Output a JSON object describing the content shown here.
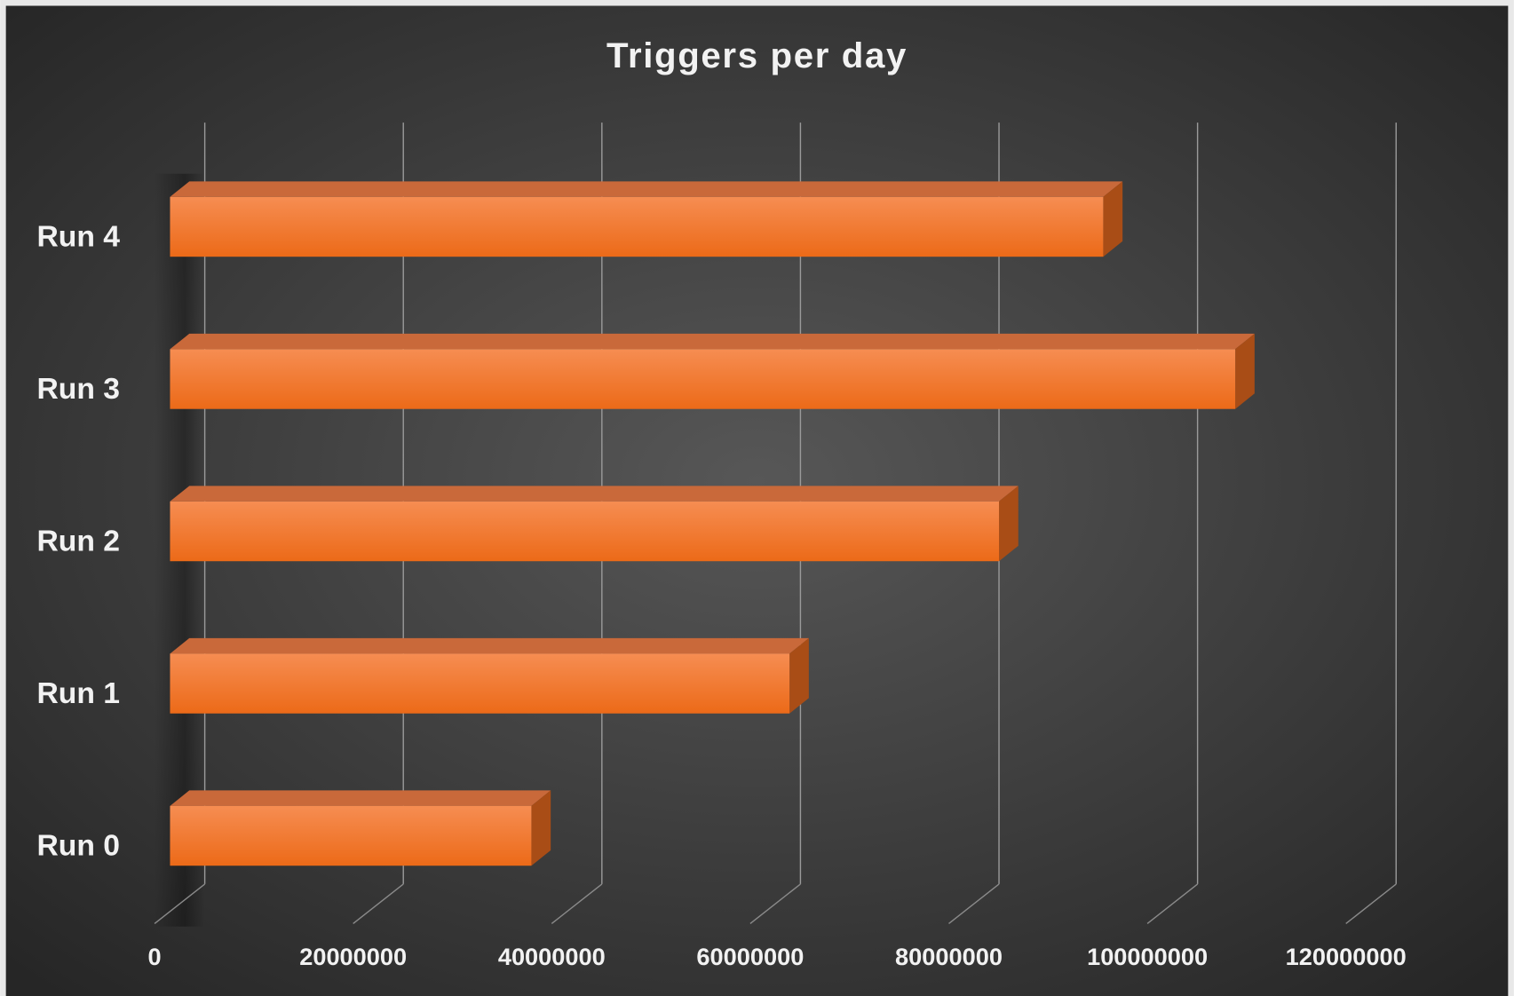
{
  "chart_data": {
    "type": "bar3d",
    "title": "Triggers per day",
    "categories": [
      "Run 0",
      "Run 1",
      "Run 2",
      "Run 3",
      "Run 4"
    ],
    "values": [
      36400000,
      62400000,
      83500000,
      107300000,
      94000000
    ],
    "color": "#f07a30",
    "xlim": [
      0,
      120000000
    ],
    "xticks": [
      0,
      20000000,
      40000000,
      60000000,
      80000000,
      100000000,
      120000000
    ],
    "grid": true
  }
}
